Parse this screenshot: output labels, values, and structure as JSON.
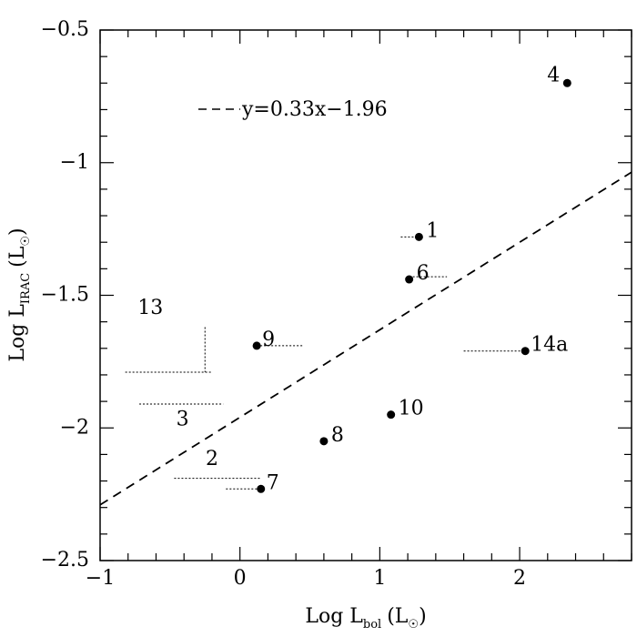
{
  "chart_data": {
    "type": "scatter",
    "xlabel_main": "Log L",
    "xlabel_sub": "bol",
    "xlabel_unit": "(L",
    "ylabel_main": "Log L",
    "ylabel_sub": "IRAC",
    "ylabel_unit": "(L",
    "unit_close": ")",
    "xlim": [
      -1,
      2.8
    ],
    "ylim": [
      -2.5,
      -0.5
    ],
    "x_ticks": [
      -1,
      0,
      1,
      2
    ],
    "x_tick_labels": [
      "−1",
      "0",
      "1",
      "2"
    ],
    "y_ticks": [
      -2.5,
      -2,
      -1.5,
      -1,
      -0.5
    ],
    "y_tick_labels": [
      "−2.5",
      "−2",
      "−1.5",
      "−1",
      "−0.5"
    ],
    "fit_line": {
      "slope": 0.33,
      "intercept": -1.96,
      "label": "y=0.33x−1.96"
    },
    "points": [
      {
        "label": "4",
        "x": 2.34,
        "y": -0.7
      },
      {
        "label": "1",
        "x": 1.28,
        "y": -1.28
      },
      {
        "label": "6",
        "x": 1.21,
        "y": -1.44
      },
      {
        "label": "9",
        "x": 0.12,
        "y": -1.69
      },
      {
        "label": "14a",
        "x": 2.04,
        "y": -1.71
      },
      {
        "label": "10",
        "x": 1.08,
        "y": -1.95
      },
      {
        "label": "8",
        "x": 0.6,
        "y": -2.05
      },
      {
        "label": "7",
        "x": 0.15,
        "y": -2.23
      }
    ],
    "upper_limits_dotted": [
      {
        "label": "1",
        "x1": 1.15,
        "x2": 1.28,
        "y": -1.28
      },
      {
        "label": "6",
        "x1": 1.21,
        "x2": 1.48,
        "y": -1.43
      },
      {
        "label": "9",
        "x1": 0.12,
        "x2": 0.45,
        "y": -1.69
      },
      {
        "label": "14a",
        "x1": 1.6,
        "x2": 2.04,
        "y": -1.71
      },
      {
        "label": "7",
        "x1": -0.1,
        "x2": 0.15,
        "y": -2.23
      }
    ],
    "limit_only_sources": [
      {
        "label": "13",
        "x1": -0.82,
        "x2": -0.2,
        "y": -1.79,
        "vx": -0.25,
        "vy1": -1.62,
        "vy2": -1.79
      },
      {
        "label": "3",
        "x1": -0.72,
        "x2": -0.12,
        "y": -1.91
      },
      {
        "label": "2",
        "x1": -0.47,
        "x2": 0.15,
        "y": -2.19
      }
    ],
    "grid": false,
    "legend": "top-left"
  }
}
